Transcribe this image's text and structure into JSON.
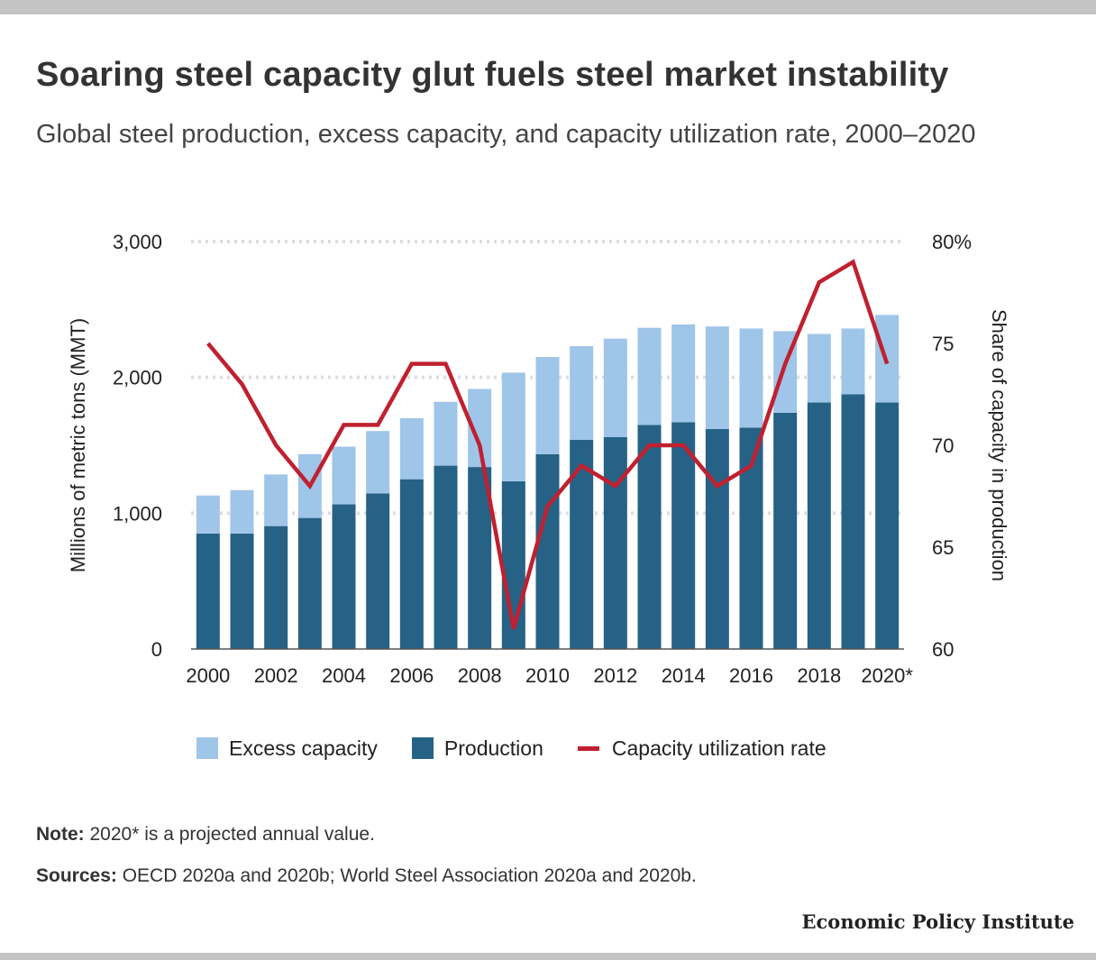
{
  "title": "Soaring steel capacity glut fuels steel market instability",
  "subtitle": "Global steel production, excess capacity, and capacity utilization rate, 2000–2020",
  "legend": {
    "excess": "Excess capacity",
    "production": "Production",
    "utilization": "Capacity utilization rate"
  },
  "note": {
    "label": "Note:",
    "text": " 2020* is a projected annual value."
  },
  "sources": {
    "label": "Sources:",
    "text": " OECD 2020a and 2020b; World Steel Association 2020a and 2020b."
  },
  "brand": "Economic Policy Institute",
  "colors": {
    "excess": "#9fc5e8",
    "production": "#266285",
    "utilization": "#c0202f",
    "grid": "#dddddd"
  },
  "chart_data": {
    "type": "bar",
    "stacked": true,
    "categories": [
      "2000",
      "2001",
      "2002",
      "2003",
      "2004",
      "2005",
      "2006",
      "2007",
      "2008",
      "2009",
      "2010",
      "2011",
      "2012",
      "2013",
      "2014",
      "2015",
      "2016",
      "2017",
      "2018",
      "2019",
      "2020*"
    ],
    "x_tick_labels": [
      "2000",
      "2002",
      "2004",
      "2006",
      "2008",
      "2010",
      "2012",
      "2014",
      "2016",
      "2018",
      "2020*"
    ],
    "series": [
      {
        "name": "Production",
        "axis": "left",
        "values": [
          850,
          850,
          905,
          965,
          1065,
          1145,
          1250,
          1350,
          1340,
          1235,
          1435,
          1540,
          1560,
          1650,
          1670,
          1620,
          1630,
          1740,
          1815,
          1875,
          1815
        ]
      },
      {
        "name": "Excess capacity",
        "axis": "left",
        "values": [
          280,
          320,
          380,
          470,
          425,
          460,
          450,
          470,
          575,
          800,
          715,
          690,
          725,
          715,
          720,
          755,
          730,
          600,
          505,
          485,
          645
        ]
      },
      {
        "name": "Capacity utilization rate",
        "type": "line",
        "axis": "right",
        "values": [
          75,
          73,
          70,
          68,
          71,
          71,
          74,
          74,
          70,
          61,
          67,
          69,
          68,
          70,
          70,
          68,
          69,
          74,
          78,
          79,
          74
        ]
      }
    ],
    "ylabel": "Millions of metric tons (MMT)",
    "ylim": [
      0,
      3000
    ],
    "y_ticks": [
      "0",
      "1,000",
      "2,000",
      "3,000"
    ],
    "y2label": "Share of capacity in production",
    "y2lim": [
      60,
      80
    ],
    "y2_ticks": [
      "60",
      "65",
      "70",
      "75",
      "80%"
    ],
    "grid": true,
    "legend_position": "bottom"
  }
}
